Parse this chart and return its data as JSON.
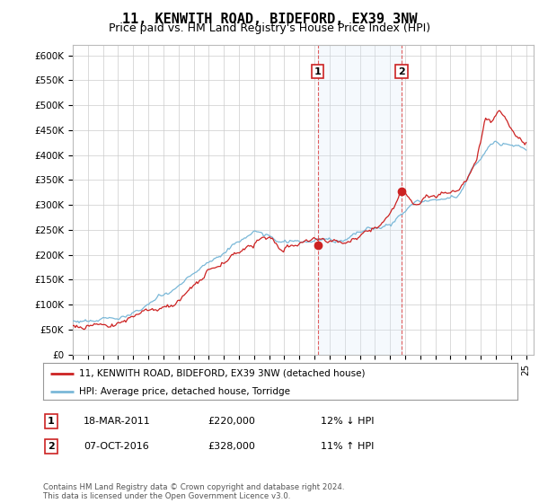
{
  "title": "11, KENWITH ROAD, BIDEFORD, EX39 3NW",
  "subtitle": "Price paid vs. HM Land Registry's House Price Index (HPI)",
  "ylabel_ticks": [
    0,
    50000,
    100000,
    150000,
    200000,
    250000,
    300000,
    350000,
    400000,
    450000,
    500000,
    550000,
    600000
  ],
  "ylabel_labels": [
    "£0",
    "£50K",
    "£100K",
    "£150K",
    "£200K",
    "£250K",
    "£300K",
    "£350K",
    "£400K",
    "£450K",
    "£500K",
    "£550K",
    "£600K"
  ],
  "xlim": [
    1995.0,
    2025.5
  ],
  "ylim": [
    0,
    620000
  ],
  "x_tick_years": [
    1995,
    1996,
    1997,
    1998,
    1999,
    2000,
    2001,
    2002,
    2003,
    2004,
    2005,
    2006,
    2007,
    2008,
    2009,
    2010,
    2011,
    2012,
    2013,
    2014,
    2015,
    2016,
    2017,
    2018,
    2019,
    2020,
    2021,
    2022,
    2023,
    2024,
    2025
  ],
  "hpi_color": "#7ab8d8",
  "price_color": "#cc2222",
  "vline_color": "#dd4444",
  "shade_color": "#d8eaf8",
  "point1_x": 2011.21,
  "point1_y": 220000,
  "point2_x": 2016.76,
  "point2_y": 328000,
  "legend_line1": "11, KENWITH ROAD, BIDEFORD, EX39 3NW (detached house)",
  "legend_line2": "HPI: Average price, detached house, Torridge",
  "annot1_num": "1",
  "annot1_date": "18-MAR-2011",
  "annot1_price": "£220,000",
  "annot1_hpi": "12% ↓ HPI",
  "annot2_num": "2",
  "annot2_date": "07-OCT-2016",
  "annot2_price": "£328,000",
  "annot2_hpi": "11% ↑ HPI",
  "footer": "Contains HM Land Registry data © Crown copyright and database right 2024.\nThis data is licensed under the Open Government Licence v3.0.",
  "bg_color": "#ffffff",
  "grid_color": "#cccccc",
  "title_fontsize": 11,
  "subtitle_fontsize": 9,
  "tick_fontsize": 7.5
}
